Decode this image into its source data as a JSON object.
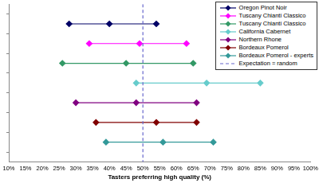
{
  "chart_data": {
    "type": "dot_range",
    "x_label": "Tasters preferring high quality (%)",
    "series": [
      {
        "name": "Oregon Pinot Noir",
        "color": "#000066",
        "marker": "diamond",
        "values": [
          28,
          40,
          54
        ]
      },
      {
        "name": "Tuscany Chianti Classico",
        "color": "#ff00ff",
        "marker": "diamond",
        "values": [
          34,
          49,
          63
        ]
      },
      {
        "name": "Tuscany Chianti Classico",
        "color": "#339966",
        "marker": "diamond",
        "values": [
          26,
          45,
          65
        ]
      },
      {
        "name": "California Cabernet",
        "color": "#66cccc",
        "marker": "diamond",
        "values": [
          48,
          69,
          85
        ]
      },
      {
        "name": "Northern Rhone",
        "color": "#800080",
        "marker": "diamond",
        "values": [
          30,
          48,
          66
        ]
      },
      {
        "name": "Bordeaux Pomerol",
        "color": "#800000",
        "marker": "diamond",
        "values": [
          36,
          54,
          66
        ]
      },
      {
        "name": "Bordeaux Pomerol - experts",
        "color": "#339999",
        "marker": "diamond",
        "values": [
          39,
          56,
          71
        ]
      }
    ],
    "reference_line": {
      "name": "Expectation = random",
      "value": 50,
      "color": "#6666cc",
      "line_style": "dashed"
    },
    "xlim": [
      10,
      100
    ],
    "xticks": [
      {
        "value": 10,
        "label": "10%"
      },
      {
        "value": 15,
        "label": "15%"
      },
      {
        "value": 20,
        "label": "20%"
      },
      {
        "value": 25,
        "label": "25%"
      },
      {
        "value": 30,
        "label": "30%"
      },
      {
        "value": 35,
        "label": "35%"
      },
      {
        "value": 40,
        "label": "40%"
      },
      {
        "value": 45,
        "label": "45%"
      },
      {
        "value": 50,
        "label": "50%"
      },
      {
        "value": 55,
        "label": "55%"
      },
      {
        "value": 60,
        "label": "60%"
      },
      {
        "value": 65,
        "label": "65%"
      },
      {
        "value": 70,
        "label": "70%"
      },
      {
        "value": 75,
        "label": "75%"
      },
      {
        "value": 80,
        "label": "80%"
      },
      {
        "value": 85,
        "label": "85%"
      },
      {
        "value": 90,
        "label": "90%"
      },
      {
        "value": 95,
        "label": "95%"
      },
      {
        "value": 100,
        "label": "100%"
      }
    ],
    "grid": false,
    "legend": "top-right",
    "tick_labels": "x"
  }
}
